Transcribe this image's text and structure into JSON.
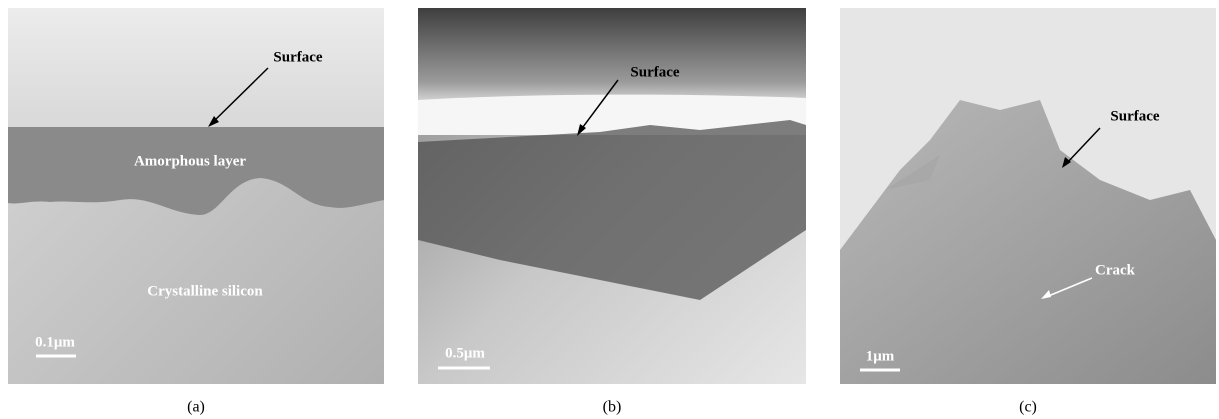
{
  "panels": [
    {
      "caption": "(a)",
      "annotations": [
        "Surface",
        "Amorphous layer",
        "Crystalline silicon"
      ],
      "scale_bar": "0.1μm"
    },
    {
      "caption": "(b)",
      "annotations": [
        "Surface"
      ],
      "scale_bar": "0.5μm"
    },
    {
      "caption": "(c)",
      "annotations": [
        "Surface",
        "Crack"
      ],
      "scale_bar": "1μm"
    }
  ]
}
